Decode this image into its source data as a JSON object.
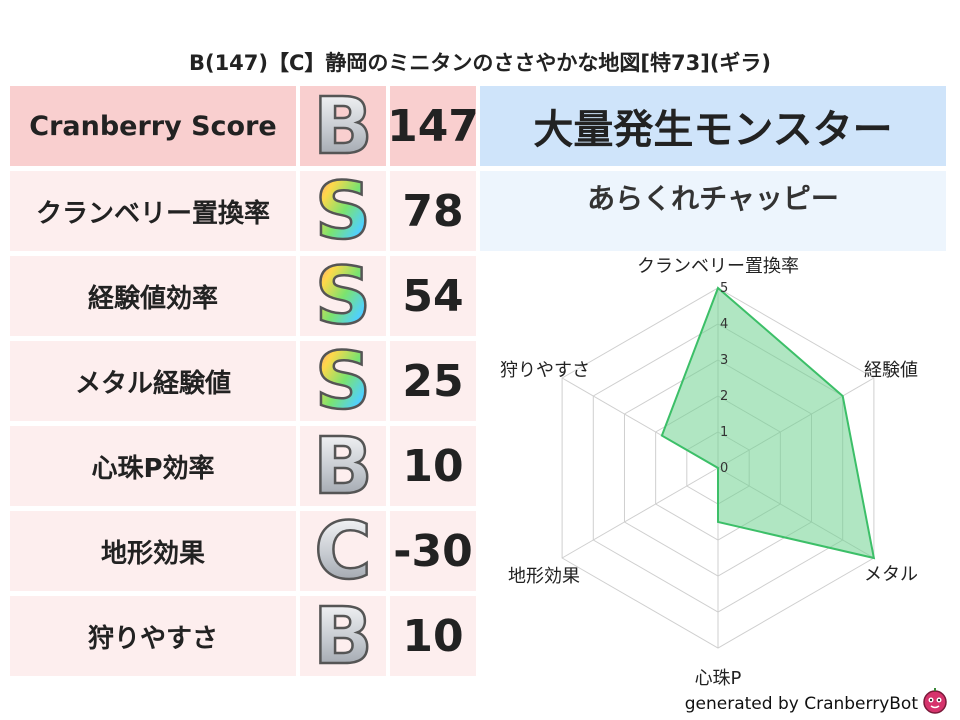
{
  "title": "B(147)【C】静岡のミニタンのささやかな地図[特73](ギラ)",
  "score_table": {
    "header": {
      "label": "Cranberry Score",
      "grade": "B",
      "value": "147"
    },
    "rows": [
      {
        "label": "クランベリー置換率",
        "grade": "S",
        "value": "78"
      },
      {
        "label": "経験値効率",
        "grade": "S",
        "value": "54"
      },
      {
        "label": "メタル経験値",
        "grade": "S",
        "value": "25"
      },
      {
        "label": "心珠P効率",
        "grade": "B",
        "value": "10"
      },
      {
        "label": "地形効果",
        "grade": "C",
        "value": "-30"
      },
      {
        "label": "狩りやすさ",
        "grade": "B",
        "value": "10"
      }
    ]
  },
  "monster": {
    "header": "大量発生モンスター",
    "name": "あらくれチャッピー"
  },
  "chart_data": {
    "type": "radar",
    "axes": [
      "クランベリー置換率",
      "経験値",
      "メタル",
      "心珠P",
      "地形効果",
      "狩りやすさ"
    ],
    "values": [
      5,
      4,
      5,
      1.5,
      0,
      1.8
    ],
    "rlim": [
      0,
      5
    ],
    "ticks": [
      "0",
      "1",
      "2",
      "3",
      "4",
      "5"
    ],
    "fill_color": "#6fd18f",
    "line_color": "#3cbf68"
  },
  "footer": "generated by CranberryBot"
}
